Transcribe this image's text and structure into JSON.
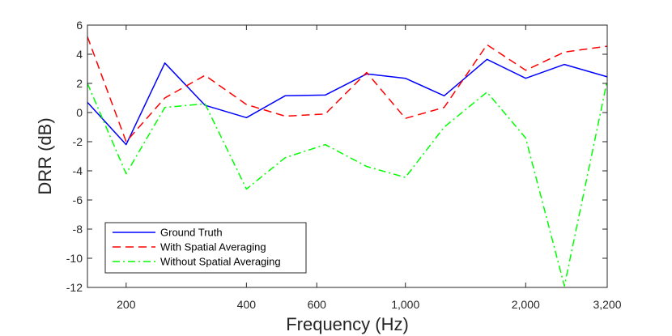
{
  "chart_data": {
    "type": "line",
    "title": "",
    "xlabel": "Frequency (Hz)",
    "ylabel": "DRR (dB)",
    "xscale": "log2",
    "xlim": [
      160,
      3200
    ],
    "ylim": [
      -12,
      6
    ],
    "xticks": [
      200,
      400,
      600,
      1000,
      2000,
      3200
    ],
    "xtick_labels": [
      "200",
      "400",
      "600",
      "1,000",
      "2,000",
      "3,200"
    ],
    "yticks": [
      -12,
      -10,
      -8,
      -6,
      -4,
      -2,
      0,
      2,
      4,
      6
    ],
    "ytick_labels": [
      "-12",
      "-10",
      "-8",
      "-6",
      "-4",
      "-2",
      "0",
      "2",
      "4",
      "6"
    ],
    "x": [
      160,
      200,
      250,
      315,
      400,
      500,
      630,
      800,
      1000,
      1250,
      1600,
      2000,
      2500,
      3200
    ],
    "series": [
      {
        "name": "Ground Truth",
        "color": "#0000ff",
        "dash": "solid",
        "values": [
          0.7,
          -2.2,
          3.4,
          0.5,
          -0.35,
          1.15,
          1.2,
          2.65,
          2.35,
          1.15,
          3.65,
          2.35,
          3.3,
          2.45
        ]
      },
      {
        "name": "With Spatial Averaging",
        "color": "#ff0000",
        "dash": "dashed",
        "values": [
          5.2,
          -2.0,
          1.0,
          2.55,
          0.55,
          -0.25,
          -0.1,
          2.75,
          -0.4,
          0.35,
          4.65,
          2.9,
          4.15,
          4.55
        ]
      },
      {
        "name": "Without Spatial Averaging",
        "color": "#00ff00",
        "dash": "dashdot",
        "values": [
          2.0,
          -4.2,
          0.35,
          0.6,
          -5.25,
          -3.1,
          -2.2,
          -3.7,
          -4.45,
          -1.0,
          1.4,
          -1.75,
          -11.9,
          2.2
        ]
      }
    ],
    "legend_position": "bottom-left",
    "grid": false
  }
}
